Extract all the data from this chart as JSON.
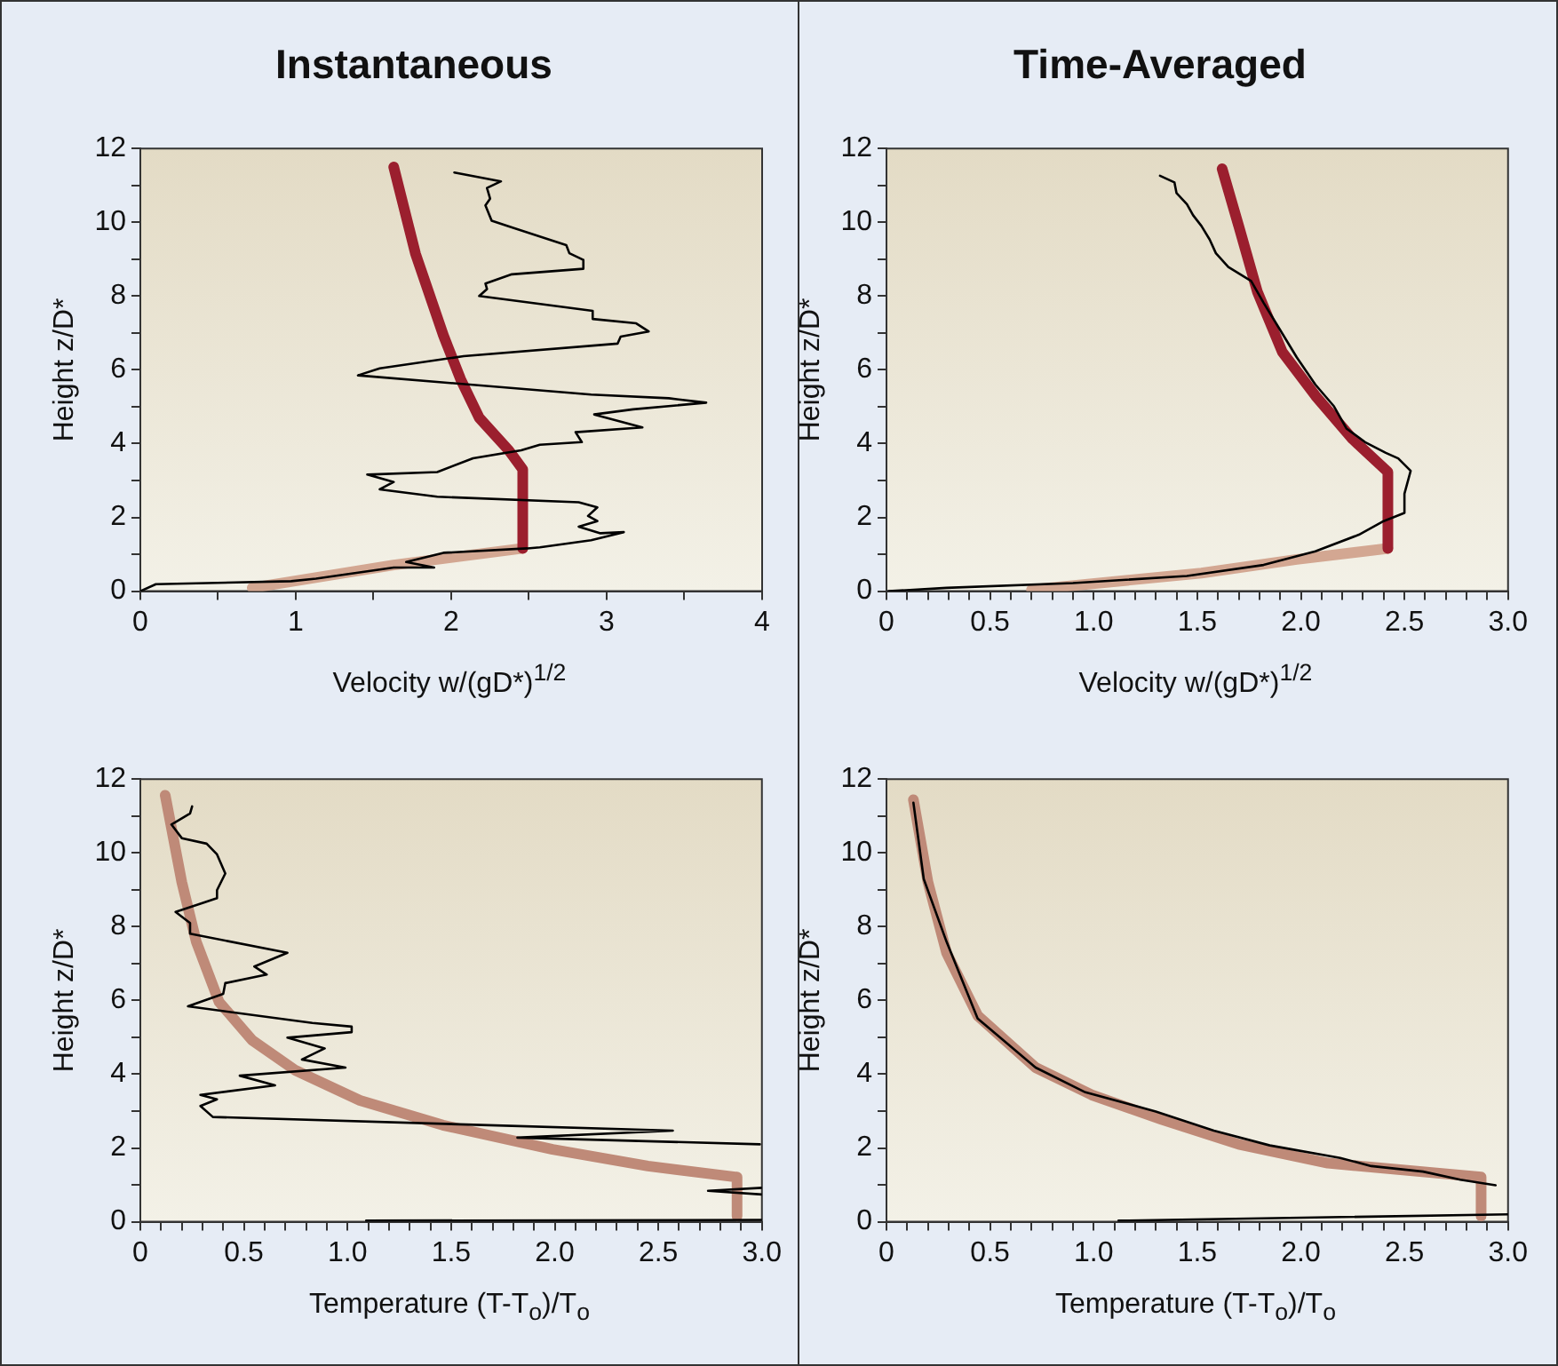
{
  "chart_data": [
    {
      "type": "line",
      "title": "Instantaneous",
      "xlabel": "Velocity w/(gD*)$^{1/2}$",
      "ylabel": "Height z/D*",
      "xlim": [
        0,
        4
      ],
      "xticks": [
        0,
        {
          "value": 0.5,
          "label": null
        },
        1,
        {
          "value": 1.5,
          "label": null
        },
        2,
        {
          "value": 2.5,
          "label": null
        },
        3,
        {
          "value": 3.5,
          "label": null
        },
        4
      ],
      "ylim": [
        0,
        12
      ],
      "yticks": [
        0,
        {
          "value": 1,
          "label": null
        },
        2,
        {
          "value": 3,
          "label": null
        },
        4,
        {
          "value": 5,
          "label": null
        },
        6,
        {
          "value": 7,
          "label": null
        },
        8,
        {
          "value": 9,
          "label": null
        },
        10,
        {
          "value": 11,
          "label": null
        },
        12
      ],
      "grid": false,
      "marker": "none",
      "series": [
        {
          "color": "#000000",
          "x": [
            2.02,
            2.32,
            2.23,
            2.25,
            2.22,
            2.26,
            2.74,
            2.76,
            2.85,
            2.85,
            2.39,
            2.22,
            2.23,
            2.18,
            2.91,
            2.91,
            3.19,
            3.27,
            3.09,
            3.07,
            2.08,
            1.54,
            1.4,
            2.9,
            3.4,
            3.64,
            3.17,
            2.92,
            3.23,
            2.8,
            2.84,
            2.57,
            2.45,
            2.14,
            1.91,
            1.46,
            1.63,
            1.54,
            1.91,
            2.82,
            2.94,
            2.88,
            2.94,
            2.82,
            2.96,
            3.11,
            2.9,
            2.57,
            2.49,
            1.95,
            1.71,
            1.89,
            1.63,
            1.13,
            0.97,
            0.1,
            0
          ],
          "values": [
            11.35,
            11.11,
            10.93,
            10.64,
            10.46,
            10.04,
            9.38,
            9.16,
            8.98,
            8.74,
            8.59,
            8.34,
            8.19,
            8.0,
            7.6,
            7.38,
            7.26,
            7.04,
            6.9,
            6.71,
            6.37,
            6.04,
            5.85,
            5.33,
            5.23,
            5.11,
            4.93,
            4.79,
            4.44,
            4.31,
            4.04,
            3.97,
            3.82,
            3.6,
            3.23,
            3.16,
            2.96,
            2.76,
            2.56,
            2.41,
            2.27,
            2.04,
            1.9,
            1.75,
            1.57,
            1.6,
            1.38,
            1.19,
            1.16,
            1.04,
            0.79,
            0.64,
            0.64,
            0.34,
            0.27,
            0.19,
            0
          ]
        },
        {
          "color": "#9b1f2e",
          "x": [
            1.63,
            1.77,
            1.95,
            2.06,
            2.18,
            2.37,
            2.46,
            2.46
          ],
          "values": [
            11.5,
            9.15,
            6.93,
            5.75,
            4.7,
            3.82,
            3.3,
            1.16
          ]
        },
        {
          "color": "#d3a792",
          "x": [
            2.46,
            1.63,
            0.72
          ],
          "values": [
            1.16,
            0.71,
            0.09
          ]
        }
      ]
    },
    {
      "type": "line",
      "title": "Time-Averaged",
      "xlabel": "Velocity w/(gD*)$^{1/2}$",
      "ylabel": "Height z/D*",
      "xlim": [
        0,
        3
      ],
      "xticks": [
        0,
        {
          "value": 0.1,
          "label": null
        },
        {
          "value": 0.2,
          "label": null
        },
        {
          "value": 0.3,
          "label": null
        },
        {
          "value": 0.4,
          "label": null
        },
        0.5,
        {
          "value": 0.6,
          "label": null
        },
        {
          "value": 0.7,
          "label": null
        },
        {
          "value": 0.8,
          "label": null
        },
        {
          "value": 0.9,
          "label": null
        },
        {
          "value": 1,
          "label": "1.0"
        },
        {
          "value": 1.1,
          "label": null
        },
        {
          "value": 1.2,
          "label": null
        },
        {
          "value": 1.3,
          "label": null
        },
        {
          "value": 1.4,
          "label": null
        },
        1.5,
        {
          "value": 1.6,
          "label": null
        },
        {
          "value": 1.7,
          "label": null
        },
        {
          "value": 1.8,
          "label": null
        },
        {
          "value": 1.9,
          "label": null
        },
        {
          "value": 2,
          "label": "2.0"
        },
        {
          "value": 2.1,
          "label": null
        },
        {
          "value": 2.2,
          "label": null
        },
        {
          "value": 2.3,
          "label": null
        },
        {
          "value": 2.4,
          "label": null
        },
        2.5,
        {
          "value": 2.6,
          "label": null
        },
        {
          "value": 2.7,
          "label": null
        },
        {
          "value": 2.8,
          "label": null
        },
        {
          "value": 2.9,
          "label": null
        },
        {
          "value": 3,
          "label": "3.0"
        }
      ],
      "ylim": [
        0,
        12
      ],
      "yticks": [
        0,
        {
          "value": 1,
          "label": null
        },
        2,
        {
          "value": 3,
          "label": null
        },
        4,
        {
          "value": 5,
          "label": null
        },
        6,
        {
          "value": 7,
          "label": null
        },
        8,
        {
          "value": 9,
          "label": null
        },
        10,
        {
          "value": 11,
          "label": null
        },
        12
      ],
      "grid": false,
      "marker": "none",
      "series": [
        {
          "color": "#000000",
          "x": [
            1.32,
            1.39,
            1.4,
            1.45,
            1.48,
            1.52,
            1.56,
            1.59,
            1.65,
            1.76,
            1.82,
            1.9,
            1.98,
            2.07,
            2.16,
            2.22,
            2.31,
            2.41,
            2.47,
            2.53,
            2.5,
            2.5,
            2.4,
            2.28,
            2.07,
            1.82,
            1.45,
            0.9,
            0.29,
            0.01
          ],
          "values": [
            11.26,
            11.08,
            10.79,
            10.49,
            10.19,
            9.9,
            9.53,
            9.16,
            8.79,
            8.41,
            7.82,
            7.08,
            6.34,
            5.6,
            5.01,
            4.41,
            4.04,
            3.75,
            3.6,
            3.26,
            2.64,
            2.12,
            1.9,
            1.53,
            1.08,
            0.71,
            0.41,
            0.22,
            0.09,
            0
          ]
        },
        {
          "color": "#9b1f2e",
          "x": [
            1.62,
            1.7,
            1.79,
            1.91,
            2.07,
            2.25,
            2.42,
            2.42
          ],
          "values": [
            11.45,
            9.9,
            8.12,
            6.49,
            5.3,
            4.12,
            3.23,
            1.16
          ]
        },
        {
          "color": "#d3a792",
          "x": [
            2.42,
            1.98,
            1.52,
            0.7
          ],
          "values": [
            1.16,
            0.86,
            0.49,
            0.04
          ]
        }
      ]
    },
    {
      "type": "line",
      "xlabel": "Temperature (T-T$_{o}$)/T$_{o}$",
      "ylabel": "Height z/D*",
      "xlim": [
        0,
        3
      ],
      "xticks": [
        0,
        {
          "value": 0.1,
          "label": null
        },
        {
          "value": 0.2,
          "label": null
        },
        {
          "value": 0.3,
          "label": null
        },
        {
          "value": 0.4,
          "label": null
        },
        0.5,
        {
          "value": 0.6,
          "label": null
        },
        {
          "value": 0.7,
          "label": null
        },
        {
          "value": 0.8,
          "label": null
        },
        {
          "value": 0.9,
          "label": null
        },
        {
          "value": 1,
          "label": "1.0"
        },
        {
          "value": 1.1,
          "label": null
        },
        {
          "value": 1.2,
          "label": null
        },
        {
          "value": 1.3,
          "label": null
        },
        {
          "value": 1.4,
          "label": null
        },
        1.5,
        {
          "value": 1.6,
          "label": null
        },
        {
          "value": 1.7,
          "label": null
        },
        {
          "value": 1.8,
          "label": null
        },
        {
          "value": 1.9,
          "label": null
        },
        {
          "value": 2,
          "label": "2.0"
        },
        {
          "value": 2.1,
          "label": null
        },
        {
          "value": 2.2,
          "label": null
        },
        {
          "value": 2.3,
          "label": null
        },
        {
          "value": 2.4,
          "label": null
        },
        2.5,
        {
          "value": 2.6,
          "label": null
        },
        {
          "value": 2.7,
          "label": null
        },
        {
          "value": 2.8,
          "label": null
        },
        {
          "value": 2.9,
          "label": null
        },
        {
          "value": 3,
          "label": "3.0"
        }
      ],
      "ylim": [
        0,
        12
      ],
      "yticks": [
        0,
        {
          "value": 1,
          "label": null
        },
        2,
        {
          "value": 3,
          "label": null
        },
        4,
        {
          "value": 5,
          "label": null
        },
        6,
        {
          "value": 7,
          "label": null
        },
        8,
        {
          "value": 9,
          "label": null
        },
        10,
        {
          "value": 11,
          "label": null
        },
        12
      ],
      "grid": false,
      "marker": "none",
      "series": [
        {
          "color": "#000000",
          "x": [
            0.25,
            0.24,
            0.15,
            0.2,
            0.32,
            0.37,
            0.41,
            0.37,
            0.37,
            0.17,
            0.24,
            0.24,
            0.71,
            0.55,
            0.61,
            0.41,
            0.4,
            0.23,
            0.83,
            1.02,
            1.02,
            0.71,
            0.89,
            0.78,
            0.99,
            0.48,
            0.65,
            0.29,
            0.37,
            0.29,
            0.35,
            2.57,
            1.82,
            2.99,
            null,
            3.0,
            2.74,
            3.0,
            null,
            1.09,
            3.0
          ],
          "values": [
            11.26,
            11.07,
            10.77,
            10.4,
            10.25,
            9.96,
            9.44,
            8.99,
            8.77,
            8.4,
            8.1,
            7.81,
            7.29,
            6.92,
            6.7,
            6.47,
            6.18,
            5.84,
            5.39,
            5.29,
            5.14,
            4.99,
            4.7,
            4.4,
            4.18,
            3.96,
            3.7,
            3.44,
            3.32,
            3.14,
            2.84,
            2.47,
            2.28,
            2.1,
            null,
            0.92,
            0.84,
            0.74,
            null,
            0.03,
            0.05
          ]
        },
        {
          "color": "#bf8a78",
          "x": [
            0.12,
            0.2,
            0.27,
            0.38,
            0.54,
            0.75,
            1.06,
            1.46,
            1.99,
            2.45,
            2.88,
            2.88
          ],
          "values": [
            11.56,
            9.21,
            7.59,
            5.96,
            4.92,
            4.1,
            3.29,
            2.62,
            1.96,
            1.51,
            1.21,
            0.15
          ]
        }
      ]
    },
    {
      "type": "line",
      "xlabel": "Temperature (T-T$_{o}$)/T$_{o}$",
      "ylabel": "Height z/D*",
      "xlim": [
        0,
        3
      ],
      "xticks": [
        0,
        {
          "value": 0.1,
          "label": null
        },
        {
          "value": 0.2,
          "label": null
        },
        {
          "value": 0.3,
          "label": null
        },
        {
          "value": 0.4,
          "label": null
        },
        0.5,
        {
          "value": 0.6,
          "label": null
        },
        {
          "value": 0.7,
          "label": null
        },
        {
          "value": 0.8,
          "label": null
        },
        {
          "value": 0.9,
          "label": null
        },
        {
          "value": 1,
          "label": "1.0"
        },
        {
          "value": 1.1,
          "label": null
        },
        {
          "value": 1.2,
          "label": null
        },
        {
          "value": 1.3,
          "label": null
        },
        {
          "value": 1.4,
          "label": null
        },
        1.5,
        {
          "value": 1.6,
          "label": null
        },
        {
          "value": 1.7,
          "label": null
        },
        {
          "value": 1.8,
          "label": null
        },
        {
          "value": 1.9,
          "label": null
        },
        {
          "value": 2,
          "label": "2.0"
        },
        {
          "value": 2.1,
          "label": null
        },
        {
          "value": 2.2,
          "label": null
        },
        {
          "value": 2.3,
          "label": null
        },
        {
          "value": 2.4,
          "label": null
        },
        2.5,
        {
          "value": 2.6,
          "label": null
        },
        {
          "value": 2.7,
          "label": null
        },
        {
          "value": 2.8,
          "label": null
        },
        {
          "value": 2.9,
          "label": null
        },
        {
          "value": 3,
          "label": "3.0"
        }
      ],
      "ylim": [
        0,
        12
      ],
      "yticks": [
        0,
        {
          "value": 1,
          "label": null
        },
        2,
        {
          "value": 3,
          "label": null
        },
        4,
        {
          "value": 5,
          "label": null
        },
        6,
        {
          "value": 7,
          "label": null
        },
        8,
        {
          "value": 9,
          "label": null
        },
        10,
        {
          "value": 11,
          "label": null
        },
        12
      ],
      "grid": false,
      "marker": "none",
      "series": [
        {
          "color": "#000000",
          "x": [
            0.13,
            0.18,
            0.29,
            0.44,
            0.72,
            0.96,
            1.3,
            1.58,
            1.85,
            2.19,
            2.34,
            2.59,
            2.77,
            2.94,
            null,
            1.12,
            3.0
          ],
          "values": [
            11.36,
            9.29,
            7.59,
            5.51,
            4.18,
            3.51,
            2.99,
            2.47,
            2.07,
            1.73,
            1.51,
            1.36,
            1.14,
            0.99,
            null,
            0.03,
            0.2
          ]
        },
        {
          "color": "#bf8a78",
          "x": [
            0.13,
            0.2,
            0.29,
            0.44,
            0.72,
            0.99,
            1.33,
            1.7,
            2.13,
            2.87,
            2.87
          ],
          "values": [
            11.44,
            9.21,
            7.29,
            5.59,
            4.18,
            3.44,
            2.77,
            2.1,
            1.59,
            1.21,
            0.15
          ]
        }
      ]
    }
  ]
}
